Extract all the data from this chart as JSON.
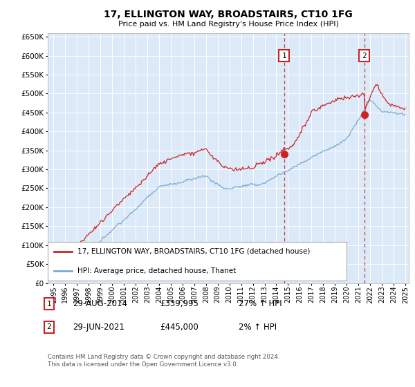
{
  "title": "17, ELLINGTON WAY, BROADSTAIRS, CT10 1FG",
  "subtitle": "Price paid vs. HM Land Registry's House Price Index (HPI)",
  "ylim": [
    0,
    660000
  ],
  "xlim_start": 1994.5,
  "xlim_end": 2025.3,
  "plot_bg_color": "#dce9f8",
  "grid_color": "#ffffff",
  "red_color": "#cc2222",
  "blue_color": "#7aaad0",
  "transaction1_date": "29-AUG-2014",
  "transaction1_price": 339995,
  "transaction1_hpi": "27% ↑ HPI",
  "transaction2_date": "29-JUN-2021",
  "transaction2_price": 445000,
  "transaction2_hpi": "2% ↑ HPI",
  "legend_label_red": "17, ELLINGTON WAY, BROADSTAIRS, CT10 1FG (detached house)",
  "legend_label_blue": "HPI: Average price, detached house, Thanet",
  "footnote": "Contains HM Land Registry data © Crown copyright and database right 2024.\nThis data is licensed under the Open Government Licence v3.0.",
  "marker1_x": 2014.66,
  "marker1_y": 339995,
  "marker2_x": 2021.5,
  "marker2_y": 445000
}
